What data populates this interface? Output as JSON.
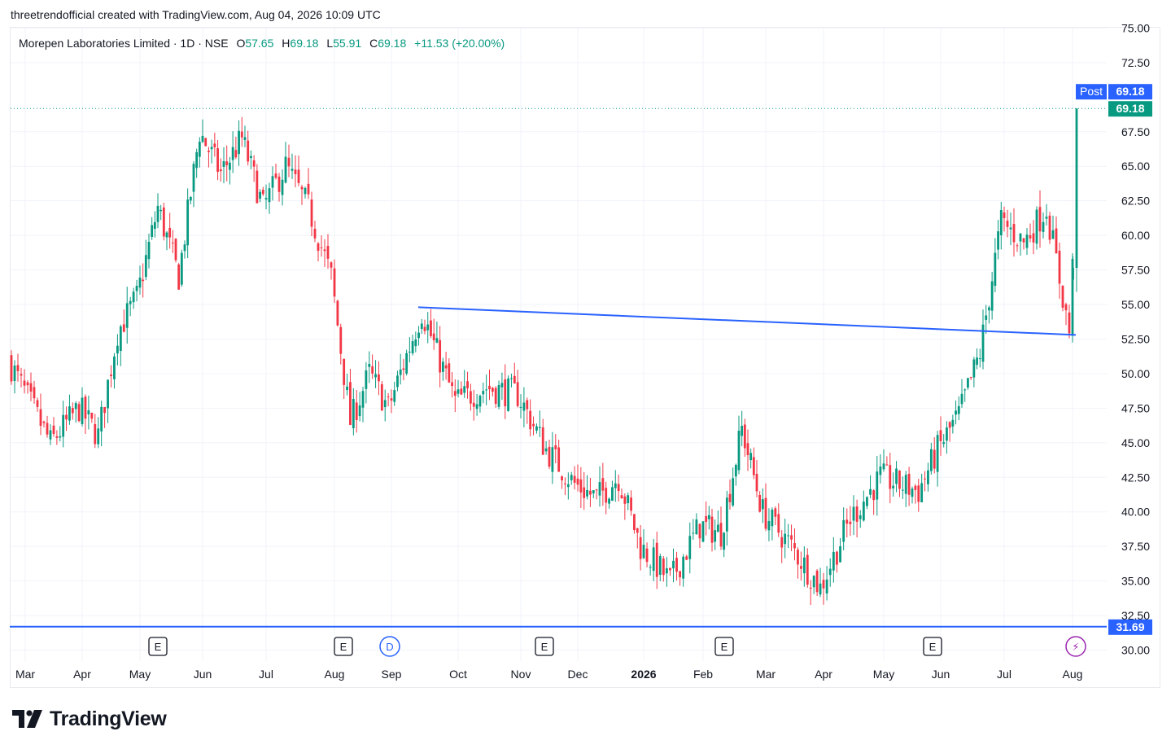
{
  "caption": "threetrendofficial created with TradingView.com, Aug 04, 2026 10:09 UTC",
  "legend": {
    "symbol": "Morepen Laboratories Limited · 1D · NSE",
    "open_label": "O",
    "open_value": "57.65",
    "high_label": "H",
    "high_value": "69.18",
    "low_label": "L",
    "low_value": "55.91",
    "close_label": "C",
    "close_value": "69.18",
    "change": "+11.53 (+20.00%)"
  },
  "brand": "TradingView",
  "colors": {
    "up": "#089981",
    "down": "#f23645",
    "trendline": "#2962ff",
    "post_badge": "#2962ff",
    "price_badge": "#089981",
    "grid": "#f0f3fa",
    "dividend": "#2962ff",
    "split": "#9c27b0"
  },
  "chart_data": {
    "type": "candlestick",
    "y_axis": {
      "ylim": [
        30.0,
        75.0
      ],
      "ticks": [
        "30.00",
        "32.50",
        "35.00",
        "37.50",
        "40.00",
        "42.50",
        "45.00",
        "47.50",
        "50.00",
        "52.50",
        "55.00",
        "57.50",
        "60.00",
        "62.50",
        "65.00",
        "67.50",
        "72.50",
        "75.00"
      ]
    },
    "x_axis": {
      "ticks": [
        "Mar",
        "Apr",
        "May",
        "Jun",
        "Jul",
        "Aug",
        "Sep",
        "Oct",
        "Nov",
        "Dec",
        "2026",
        "Feb",
        "Mar",
        "Apr",
        "May",
        "Jun",
        "Jul",
        "Aug"
      ],
      "bold_ticks": [
        "2026"
      ]
    },
    "last_price": 69.18,
    "post_label": "Post",
    "post_price": "69.18",
    "price_label": "69.18",
    "horizontal_line": {
      "value": 31.69,
      "label": "31.69"
    },
    "trendline": {
      "points": [
        [
          "Sep",
          54.8
        ],
        [
          "Aug",
          52.8
        ]
      ]
    },
    "event_markers": [
      {
        "type": "earnings",
        "label": "E",
        "at": "May"
      },
      {
        "type": "earnings",
        "label": "E",
        "at": "Aug"
      },
      {
        "type": "dividend",
        "label": "D",
        "at": "Sep"
      },
      {
        "type": "earnings",
        "label": "E",
        "at": "Nov"
      },
      {
        "type": "earnings",
        "label": "E",
        "at": "Feb"
      },
      {
        "type": "earnings",
        "label": "E",
        "at": "Jun"
      },
      {
        "type": "split",
        "label": "⚡",
        "at": "Aug"
      }
    ],
    "close_path": [
      [
        "Mar",
        51.0
      ],
      [
        "Mar",
        45.0
      ],
      [
        "Apr",
        47.5
      ],
      [
        "Apr",
        45.5
      ],
      [
        "Apr",
        53.0
      ],
      [
        "May",
        55.5
      ],
      [
        "May",
        62.0
      ],
      [
        "May",
        57.0
      ],
      [
        "Jun",
        67.5
      ],
      [
        "Jun",
        64.5
      ],
      [
        "Jun",
        67.0
      ],
      [
        "Jul",
        62.0
      ],
      [
        "Jul",
        65.0
      ],
      [
        "Jul",
        62.0
      ],
      [
        "Aug",
        57.0
      ],
      [
        "Aug",
        46.5
      ],
      [
        "Aug",
        50.0
      ],
      [
        "Sep",
        47.5
      ],
      [
        "Sep",
        54.5
      ],
      [
        "Oct",
        48.0
      ],
      [
        "Oct",
        49.0
      ],
      [
        "Nov",
        48.5
      ],
      [
        "Nov",
        44.5
      ],
      [
        "Dec",
        42.0
      ],
      [
        "Dec",
        41.0
      ],
      [
        "Dec",
        42.5
      ],
      [
        "2026",
        37.5
      ],
      [
        "2026",
        35.0
      ],
      [
        "Feb",
        39.0
      ],
      [
        "Feb",
        38.5
      ],
      [
        "Feb",
        46.0
      ],
      [
        "Mar",
        40.0
      ],
      [
        "Mar",
        37.5
      ],
      [
        "Apr",
        34.5
      ],
      [
        "Apr",
        39.5
      ],
      [
        "May",
        42.5
      ],
      [
        "May",
        42.0
      ],
      [
        "May",
        41.5
      ],
      [
        "Jun",
        44.5
      ],
      [
        "Jun",
        47.0
      ],
      [
        "Jun",
        51.5
      ],
      [
        "Jul",
        61.0
      ],
      [
        "Jul",
        59.5
      ],
      [
        "Jul",
        62.0
      ],
      [
        "Aug",
        53.0
      ],
      [
        "Aug",
        57.65
      ],
      [
        "Aug",
        69.18
      ]
    ]
  }
}
